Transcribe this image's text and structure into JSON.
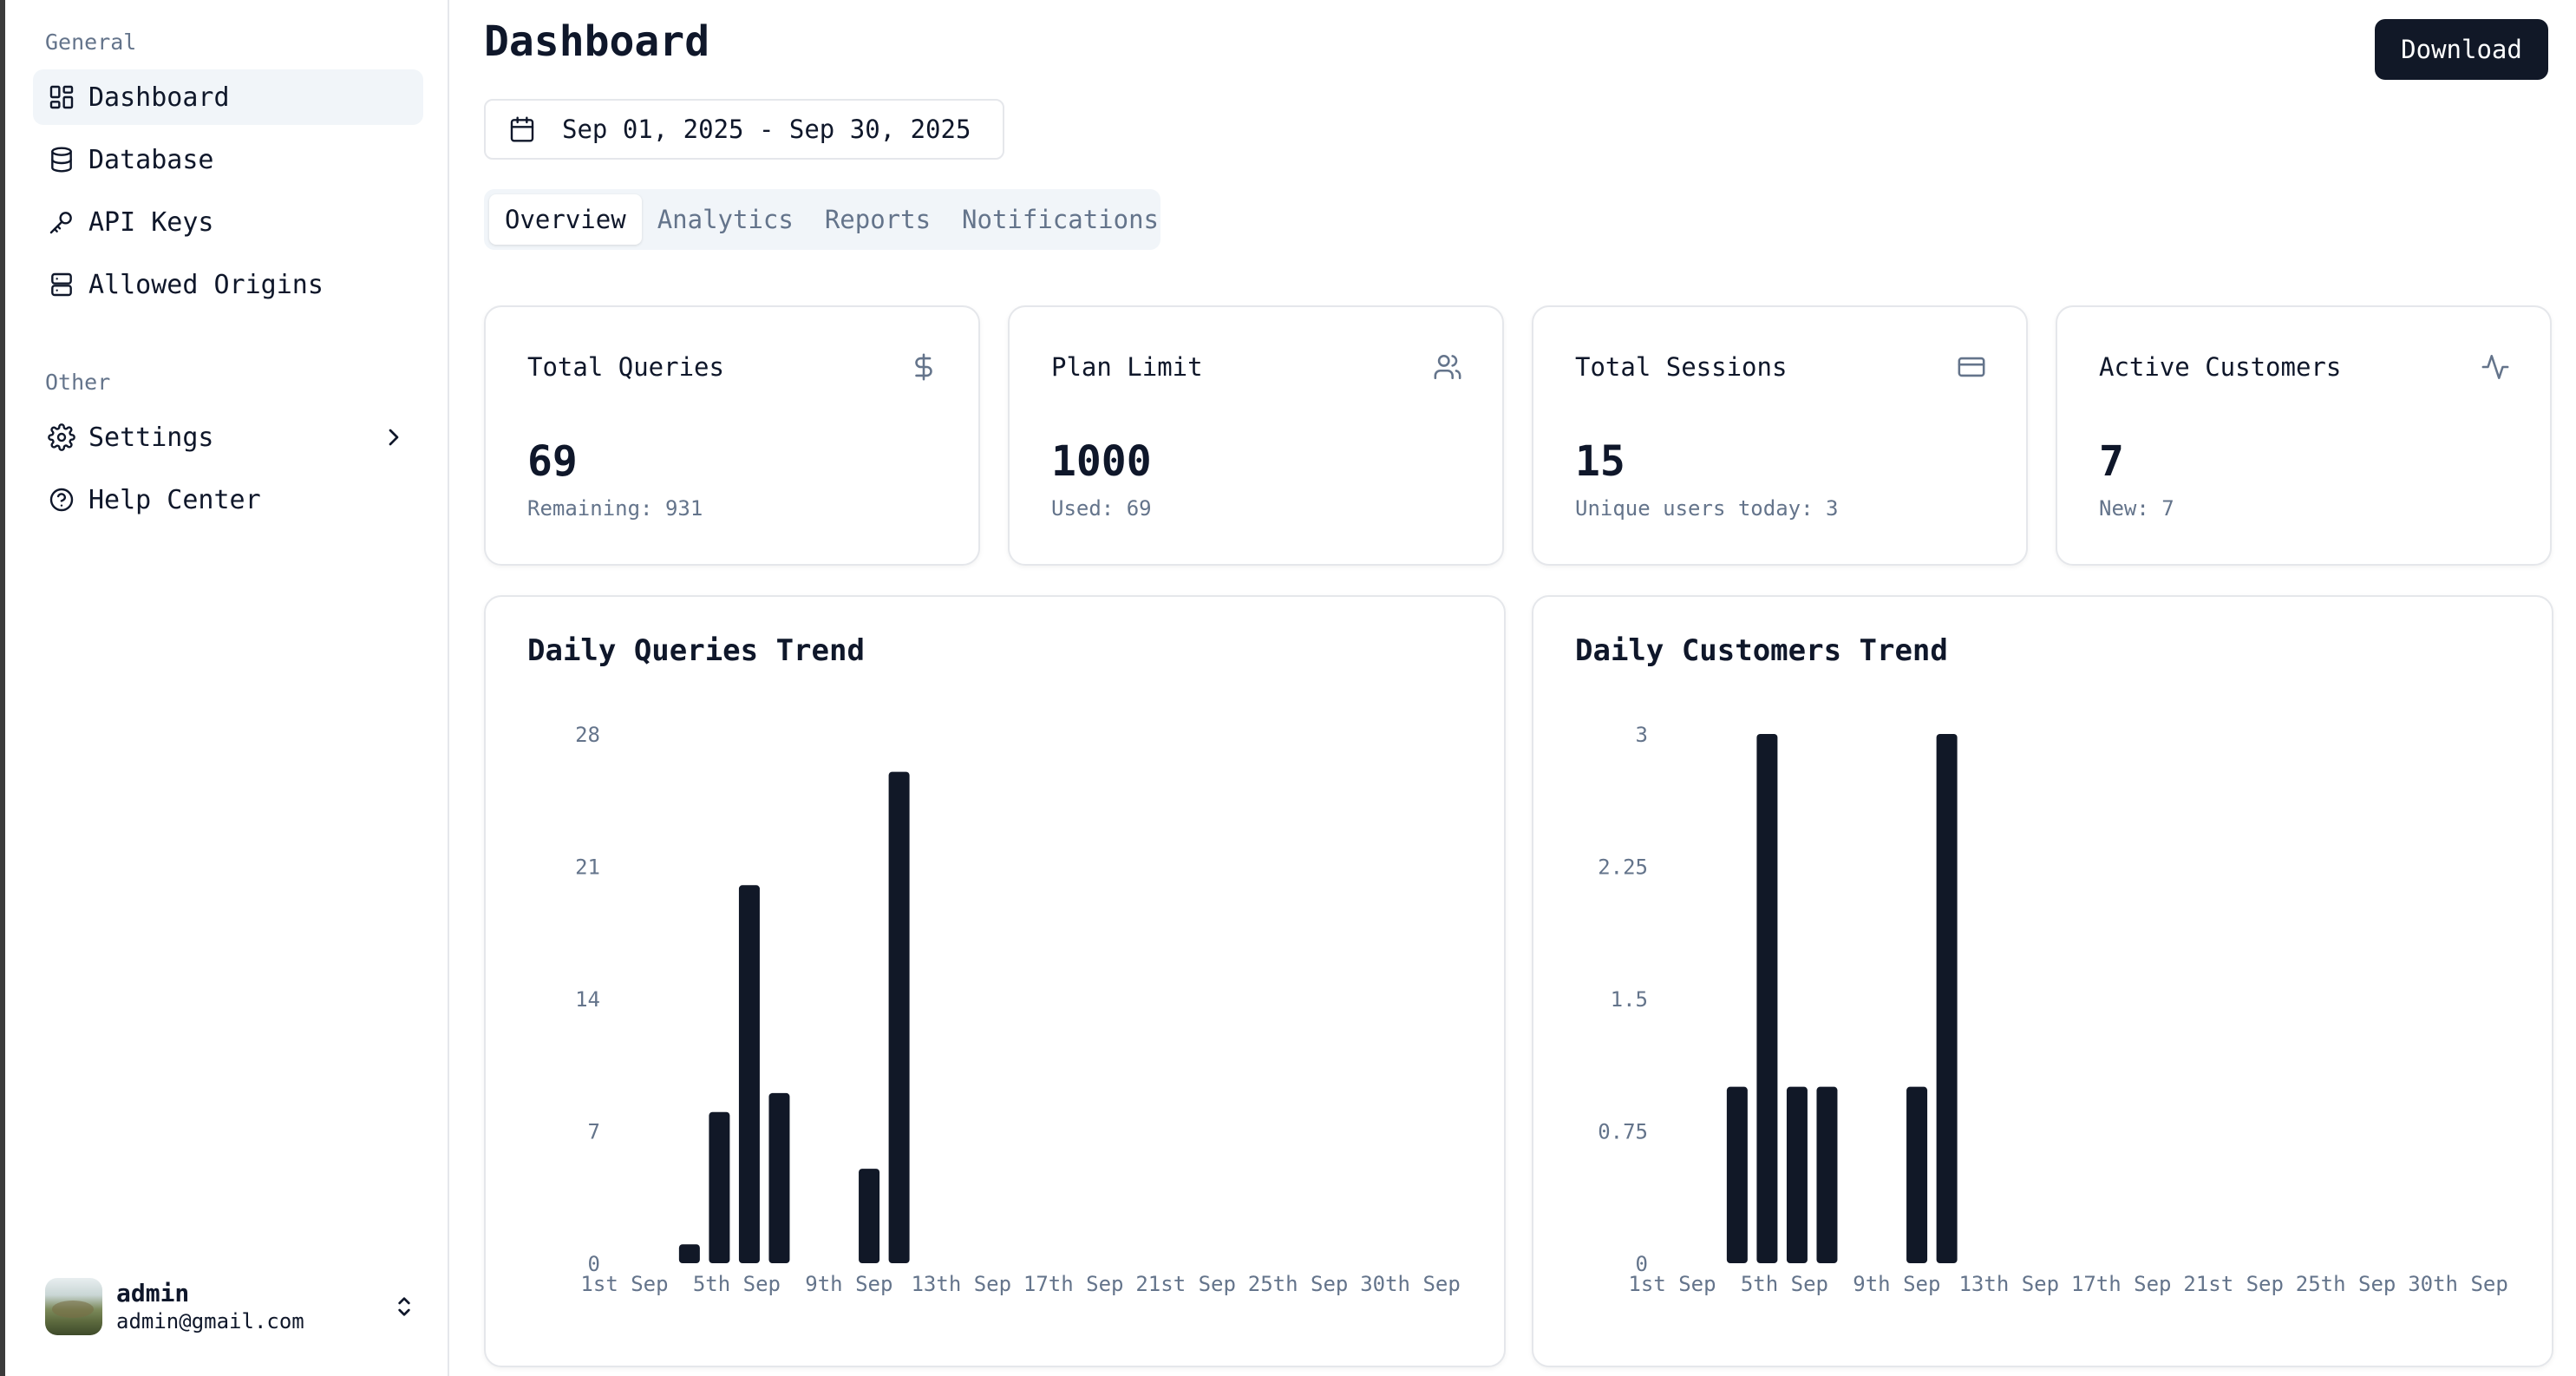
{
  "sidebar": {
    "general_label": "General",
    "other_label": "Other",
    "items": [
      {
        "label": "Dashboard",
        "icon": "dashboard-icon"
      },
      {
        "label": "Database",
        "icon": "database-icon"
      },
      {
        "label": "API Keys",
        "icon": "key-icon"
      },
      {
        "label": "Allowed Origins",
        "icon": "server-icon"
      }
    ],
    "other_items": [
      {
        "label": "Settings",
        "icon": "gear-icon"
      },
      {
        "label": "Help Center",
        "icon": "help-icon"
      }
    ],
    "user": {
      "name": "admin",
      "email": "admin@gmail.com"
    }
  },
  "header": {
    "title": "Dashboard",
    "download_label": "Download",
    "date_range": "Sep 01, 2025 - Sep 30, 2025"
  },
  "tabs": [
    "Overview",
    "Analytics",
    "Reports",
    "Notifications"
  ],
  "active_tab": "Overview",
  "stats": [
    {
      "title": "Total Queries",
      "value": "69",
      "sub": "Remaining: 931",
      "icon": "dollar-icon"
    },
    {
      "title": "Plan Limit",
      "value": "1000",
      "sub": "Used: 69",
      "icon": "users-icon"
    },
    {
      "title": "Total Sessions",
      "value": "15",
      "sub": "Unique users today: 3",
      "icon": "credit-card-icon"
    },
    {
      "title": "Active Customers",
      "value": "7",
      "sub": "New: 7",
      "icon": "activity-icon"
    }
  ],
  "colors": {
    "bar": "#111827",
    "accent": "#111827",
    "muted": "#64748b"
  },
  "chart_data": [
    {
      "type": "bar",
      "title": "Daily Queries Trend",
      "x": [
        "1st Sep",
        "2nd Sep",
        "3rd Sep",
        "4th Sep",
        "5th Sep",
        "6th Sep",
        "7th Sep",
        "8th Sep",
        "9th Sep",
        "10th Sep",
        "11th Sep",
        "12th Sep",
        "13th Sep",
        "14th Sep",
        "15th Sep",
        "16th Sep",
        "17th Sep",
        "18th Sep",
        "19th Sep",
        "20th Sep",
        "21st Sep",
        "22nd Sep",
        "23rd Sep",
        "24th Sep",
        "25th Sep",
        "26th Sep",
        "27th Sep",
        "28th Sep",
        "29th Sep",
        "30th Sep"
      ],
      "values": [
        0,
        0,
        0,
        1,
        8,
        20,
        9,
        0,
        0,
        5,
        26,
        0,
        0,
        0,
        0,
        0,
        0,
        0,
        0,
        0,
        0,
        0,
        0,
        0,
        0,
        0,
        0,
        0,
        0,
        0
      ],
      "xticks": [
        "1st Sep",
        "5th Sep",
        "9th Sep",
        "13th Sep",
        "17th Sep",
        "21st Sep",
        "25th Sep",
        "30th Sep"
      ],
      "yticks": [
        "0",
        "7",
        "14",
        "21",
        "28"
      ],
      "ylim": [
        0,
        28
      ]
    },
    {
      "type": "bar",
      "title": "Daily Customers Trend",
      "x": [
        "1st Sep",
        "2nd Sep",
        "3rd Sep",
        "4th Sep",
        "5th Sep",
        "6th Sep",
        "7th Sep",
        "8th Sep",
        "9th Sep",
        "10th Sep",
        "11th Sep",
        "12th Sep",
        "13th Sep",
        "14th Sep",
        "15th Sep",
        "16th Sep",
        "17th Sep",
        "18th Sep",
        "19th Sep",
        "20th Sep",
        "21st Sep",
        "22nd Sep",
        "23rd Sep",
        "24th Sep",
        "25th Sep",
        "26th Sep",
        "27th Sep",
        "28th Sep",
        "29th Sep",
        "30th Sep"
      ],
      "values": [
        0,
        0,
        0,
        1,
        3,
        1,
        1,
        0,
        0,
        1,
        3,
        0,
        0,
        0,
        0,
        0,
        0,
        0,
        0,
        0,
        0,
        0,
        0,
        0,
        0,
        0,
        0,
        0,
        0,
        0
      ],
      "xticks": [
        "1st Sep",
        "5th Sep",
        "9th Sep",
        "13th Sep",
        "17th Sep",
        "21st Sep",
        "25th Sep",
        "30th Sep"
      ],
      "yticks": [
        "0",
        "0.75",
        "1.5",
        "2.25",
        "3"
      ],
      "ylim": [
        0,
        3
      ]
    }
  ]
}
